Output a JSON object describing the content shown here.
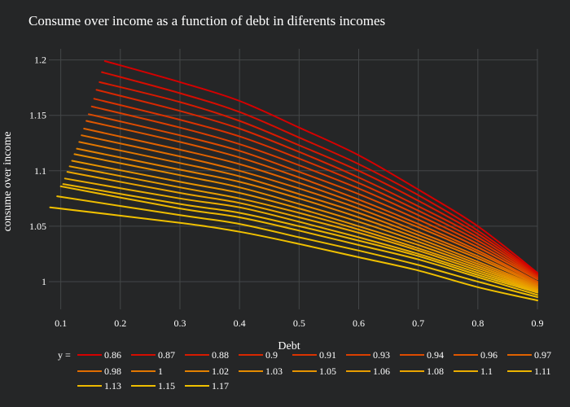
{
  "chart_data": {
    "type": "line",
    "title": "Consume over income as a function of debt in diferents incomes",
    "xlabel": "Debt",
    "ylabel": "consume over income",
    "xlim": [
      0.08,
      0.9
    ],
    "ylim": [
      0.975,
      1.21
    ],
    "x_ticks": [
      "0.1",
      "0.2",
      "0.3",
      "0.4",
      "0.5",
      "0.6",
      "0.7",
      "0.8",
      "0.9"
    ],
    "y_ticks": [
      "1",
      "1.05",
      "1.1",
      "1.15",
      "1.2"
    ],
    "grid": true,
    "legend_title": "y =",
    "legend_position": "bottom",
    "series": [
      {
        "name": "0.86",
        "color": "#d40000",
        "x": [
          0.174,
          0.3,
          0.4,
          0.5,
          0.6,
          0.7,
          0.8,
          0.9
        ],
        "y": [
          1.199,
          1.18,
          1.163,
          1.139,
          1.114,
          1.083,
          1.05,
          1.008
        ]
      },
      {
        "name": "0.87",
        "color": "#d50d00",
        "x": [
          0.169,
          0.3,
          0.4,
          0.5,
          0.6,
          0.7,
          0.8,
          0.9
        ],
        "y": [
          1.189,
          1.17,
          1.153,
          1.13,
          1.106,
          1.078,
          1.046,
          1.007
        ]
      },
      {
        "name": "0.88",
        "color": "#d71a00",
        "x": [
          0.165,
          0.3,
          0.4,
          0.5,
          0.6,
          0.7,
          0.8,
          0.9
        ],
        "y": [
          1.18,
          1.162,
          1.145,
          1.123,
          1.1,
          1.073,
          1.043,
          1.006
        ]
      },
      {
        "name": "0.9",
        "color": "#d82700",
        "x": [
          0.16,
          0.3,
          0.4,
          0.5,
          0.6,
          0.7,
          0.8,
          0.9
        ],
        "y": [
          1.173,
          1.154,
          1.138,
          1.117,
          1.094,
          1.068,
          1.04,
          1.005
        ]
      },
      {
        "name": "0.91",
        "color": "#da3300",
        "x": [
          0.156,
          0.3,
          0.4,
          0.5,
          0.6,
          0.7,
          0.8,
          0.9
        ],
        "y": [
          1.165,
          1.146,
          1.131,
          1.111,
          1.089,
          1.064,
          1.037,
          1.004
        ]
      },
      {
        "name": "0.93",
        "color": "#db3f00",
        "x": [
          0.152,
          0.3,
          0.4,
          0.5,
          0.6,
          0.7,
          0.8,
          0.9
        ],
        "y": [
          1.158,
          1.139,
          1.124,
          1.105,
          1.084,
          1.06,
          1.034,
          1.003
        ]
      },
      {
        "name": "0.94",
        "color": "#dd4b00",
        "x": [
          0.147,
          0.3,
          0.4,
          0.5,
          0.6,
          0.7,
          0.8,
          0.9
        ],
        "y": [
          1.151,
          1.132,
          1.118,
          1.099,
          1.079,
          1.056,
          1.031,
          1.002
        ]
      },
      {
        "name": "0.96",
        "color": "#de5700",
        "x": [
          0.143,
          0.3,
          0.4,
          0.5,
          0.6,
          0.7,
          0.8,
          0.9
        ],
        "y": [
          1.145,
          1.126,
          1.112,
          1.094,
          1.074,
          1.052,
          1.028,
          1.0
        ]
      },
      {
        "name": "0.97",
        "color": "#e06200",
        "x": [
          0.139,
          0.3,
          0.4,
          0.5,
          0.6,
          0.7,
          0.8,
          0.9
        ],
        "y": [
          1.138,
          1.119,
          1.106,
          1.089,
          1.07,
          1.049,
          1.026,
          0.999
        ]
      },
      {
        "name": "0.98",
        "color": "#e16d00",
        "x": [
          0.135,
          0.3,
          0.4,
          0.5,
          0.6,
          0.7,
          0.8,
          0.9
        ],
        "y": [
          1.132,
          1.113,
          1.1,
          1.084,
          1.066,
          1.045,
          1.023,
          0.998
        ]
      },
      {
        "name": "1",
        "color": "#e27700",
        "x": [
          0.131,
          0.3,
          0.4,
          0.5,
          0.6,
          0.7,
          0.8,
          0.9
        ],
        "y": [
          1.126,
          1.107,
          1.095,
          1.079,
          1.062,
          1.042,
          1.021,
          0.997
        ]
      },
      {
        "name": "1.02",
        "color": "#e48100",
        "x": [
          0.127,
          0.3,
          0.4,
          0.5,
          0.6,
          0.7,
          0.8,
          0.9
        ],
        "y": [
          1.12,
          1.101,
          1.09,
          1.075,
          1.058,
          1.039,
          1.018,
          0.996
        ]
      },
      {
        "name": "1.03",
        "color": "#e58b00",
        "x": [
          0.123,
          0.3,
          0.4,
          0.5,
          0.6,
          0.7,
          0.8,
          0.9
        ],
        "y": [
          1.115,
          1.096,
          1.085,
          1.07,
          1.054,
          1.036,
          1.016,
          0.995
        ]
      },
      {
        "name": "1.05",
        "color": "#e79400",
        "x": [
          0.119,
          0.3,
          0.4,
          0.5,
          0.6,
          0.7,
          0.8,
          0.9
        ],
        "y": [
          1.109,
          1.09,
          1.08,
          1.066,
          1.05,
          1.033,
          1.014,
          0.994
        ]
      },
      {
        "name": "1.06",
        "color": "#e89d00",
        "x": [
          0.115,
          0.3,
          0.4,
          0.5,
          0.6,
          0.7,
          0.8,
          0.9
        ],
        "y": [
          1.104,
          1.085,
          1.075,
          1.062,
          1.047,
          1.03,
          1.012,
          0.993
        ]
      },
      {
        "name": "1.08",
        "color": "#eaa500",
        "x": [
          0.111,
          0.3,
          0.4,
          0.5,
          0.6,
          0.7,
          0.8,
          0.9
        ],
        "y": [
          1.099,
          1.08,
          1.071,
          1.058,
          1.044,
          1.028,
          1.01,
          0.992
        ]
      },
      {
        "name": "1.1",
        "color": "#ebad00",
        "x": [
          0.107,
          0.3,
          0.4,
          0.5,
          0.6,
          0.7,
          0.8,
          0.9
        ],
        "y": [
          1.093,
          1.075,
          1.067,
          1.054,
          1.04,
          1.025,
          1.008,
          0.991
        ]
      },
      {
        "name": "1.11",
        "color": "#ecb400",
        "x": [
          0.104,
          0.3,
          0.4,
          0.5,
          0.6,
          0.7,
          0.8,
          0.9
        ],
        "y": [
          1.088,
          1.07,
          1.062,
          1.05,
          1.037,
          1.023,
          1.006,
          0.99
        ]
      },
      {
        "name": "1.13",
        "color": "#edb800",
        "x": [
          0.1,
          0.3,
          0.4,
          0.5,
          0.6,
          0.7,
          0.8,
          0.9
        ],
        "y": [
          1.086,
          1.066,
          1.058,
          1.046,
          1.033,
          1.02,
          1.004,
          0.988
        ]
      },
      {
        "name": "1.15",
        "color": "#eebd00",
        "x": [
          0.094,
          0.3,
          0.4,
          0.5,
          0.6,
          0.7,
          0.8,
          0.9
        ],
        "y": [
          1.077,
          1.06,
          1.052,
          1.04,
          1.028,
          1.015,
          1.0,
          0.986
        ]
      },
      {
        "name": "1.17",
        "color": "#f0c000",
        "x": [
          0.082,
          0.3,
          0.4,
          0.5,
          0.6,
          0.7,
          0.8,
          0.9
        ],
        "y": [
          1.067,
          1.053,
          1.045,
          1.034,
          1.022,
          1.01,
          0.995,
          0.983
        ]
      }
    ]
  }
}
